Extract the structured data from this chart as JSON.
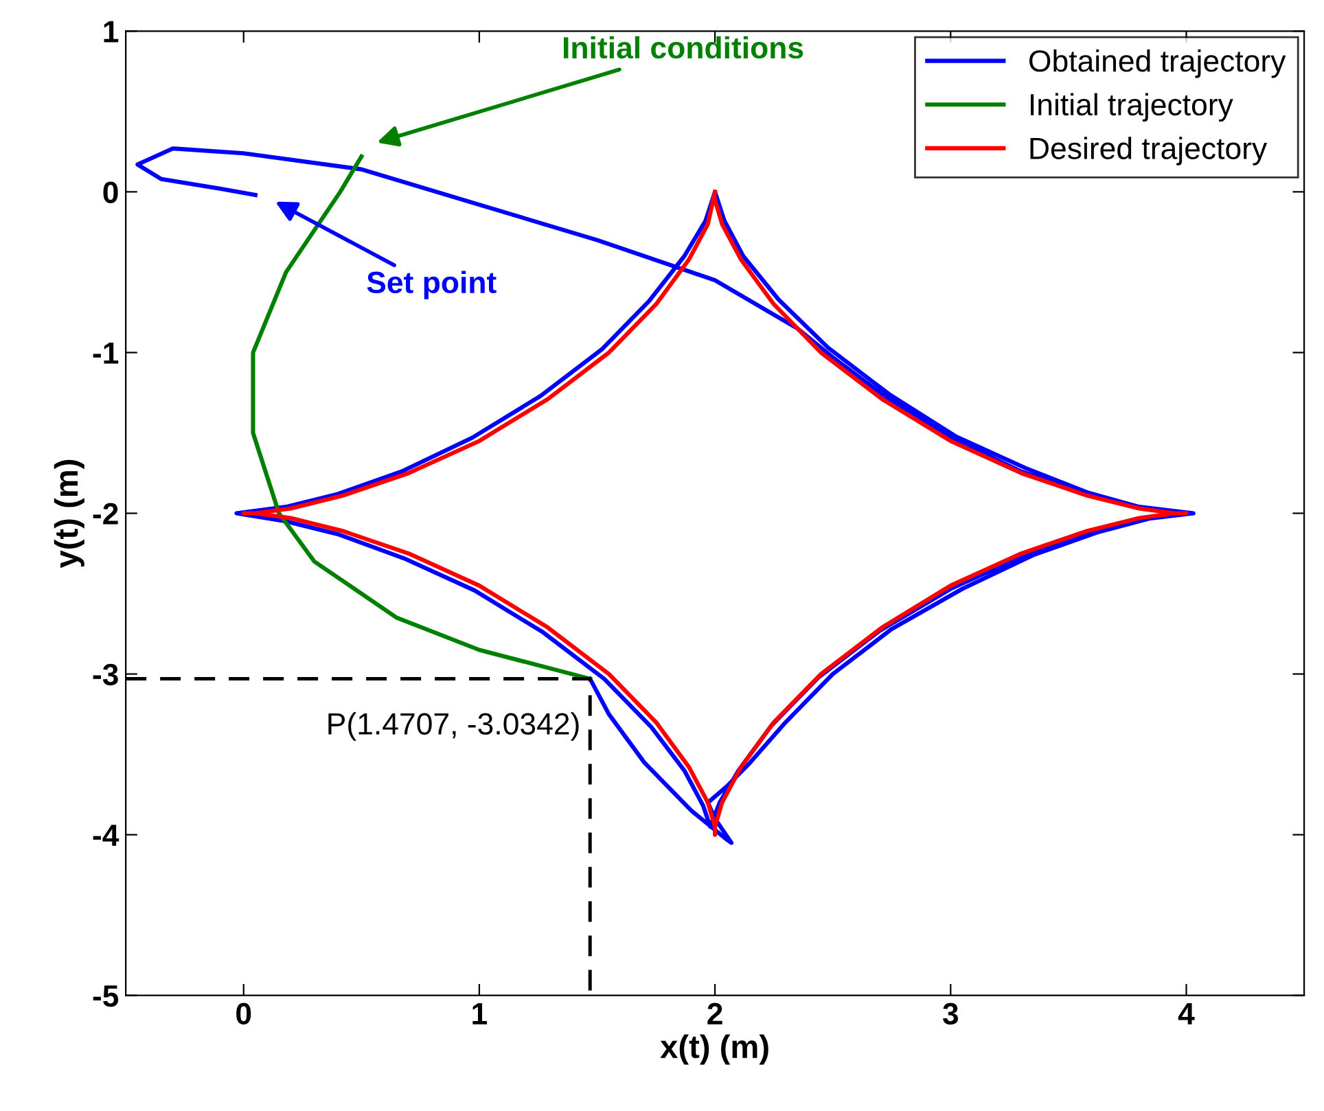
{
  "chart_data": {
    "type": "line",
    "xlabel": "x(t) (m)",
    "ylabel": "y(t) (m)",
    "xlim": [
      -0.5,
      4.5
    ],
    "ylim": [
      -5,
      1
    ],
    "xticks": [
      0,
      1,
      2,
      3,
      4
    ],
    "yticks": [
      -5,
      -4,
      -3,
      -2,
      -1,
      0,
      1
    ],
    "grid": false,
    "legend": "top right",
    "marker": "none",
    "series": [
      {
        "name": "Obtained trajectory",
        "color": "#0000ff",
        "x": [
          1.47,
          1.55,
          1.7,
          1.9,
          2.05,
          2.07,
          2.0,
          1.97,
          2.05,
          2.15,
          2.3,
          2.5,
          2.75,
          3.05,
          3.35,
          3.62,
          3.85,
          4.03,
          3.8,
          3.58,
          3.32,
          3.02,
          2.74,
          2.48,
          2.27,
          2.12,
          2.04,
          2.0,
          1.96,
          1.87,
          1.72,
          1.52,
          1.26,
          0.97,
          0.67,
          0.4,
          0.18,
          -0.03,
          0.18,
          0.4,
          0.68,
          0.98,
          1.27,
          1.53,
          1.73,
          1.87,
          1.95,
          1.98,
          2.02,
          2.1,
          2.24,
          2.44,
          2.7,
          3.0,
          3.3,
          3.58,
          3.8,
          4.03,
          3.8,
          3.58,
          3.3,
          3.0,
          2.72,
          2.5,
          2.35,
          2.0,
          1.5,
          1.0,
          0.5,
          0.0,
          -0.3,
          -0.45,
          -0.35,
          -0.1,
          0.05
        ],
        "values": [
          -3.03,
          -3.25,
          -3.55,
          -3.85,
          -4.03,
          -4.05,
          -3.9,
          -3.8,
          -3.7,
          -3.55,
          -3.3,
          -3.0,
          -2.72,
          -2.47,
          -2.26,
          -2.12,
          -2.03,
          -2.0,
          -1.96,
          -1.87,
          -1.72,
          -1.52,
          -1.26,
          -0.97,
          -0.67,
          -0.4,
          -0.18,
          0.0,
          -0.18,
          -0.4,
          -0.68,
          -0.98,
          -1.27,
          -1.53,
          -1.74,
          -1.88,
          -1.96,
          -2.0,
          -2.05,
          -2.13,
          -2.28,
          -2.48,
          -2.74,
          -3.03,
          -3.33,
          -3.6,
          -3.82,
          -3.95,
          -3.8,
          -3.6,
          -3.32,
          -3.02,
          -2.73,
          -2.47,
          -2.27,
          -2.12,
          -2.04,
          -2.0,
          -1.96,
          -1.88,
          -1.74,
          -1.53,
          -1.27,
          -1.03,
          -0.85,
          -0.55,
          -0.3,
          -0.08,
          0.14,
          0.24,
          0.27,
          0.17,
          0.08,
          0.02,
          -0.02
        ]
      },
      {
        "name": "Initial trajectory",
        "color": "#008000",
        "x": [
          0.5,
          0.41,
          0.18,
          0.04,
          0.04,
          0.15,
          0.3,
          0.65,
          1.0,
          1.47
        ],
        "values": [
          0.22,
          0.0,
          -0.5,
          -1.0,
          -1.5,
          -2.0,
          -2.3,
          -2.65,
          -2.85,
          -3.03
        ]
      },
      {
        "name": "Desired trajectory",
        "color": "#ff0000",
        "x": [
          2,
          1.97,
          1.89,
          1.75,
          1.55,
          1.29,
          1.0,
          0.7,
          0.42,
          0.2,
          0.05,
          0,
          0.05,
          0.2,
          0.42,
          0.7,
          1.0,
          1.29,
          1.55,
          1.75,
          1.89,
          1.97,
          2,
          2,
          2,
          2.03,
          2.11,
          2.25,
          2.45,
          2.71,
          3.0,
          3.3,
          3.58,
          3.8,
          3.95,
          4,
          3.95,
          3.8,
          3.58,
          3.3,
          3.0,
          2.71,
          2.45,
          2.25,
          2.11,
          2.03,
          2.0
        ],
        "values": [
          0,
          -0.2,
          -0.42,
          -0.7,
          -1.0,
          -1.29,
          -1.55,
          -1.75,
          -1.89,
          -1.97,
          -2.0,
          -2,
          -2.0,
          -2.03,
          -2.11,
          -2.25,
          -2.45,
          -2.71,
          -3.0,
          -3.3,
          -3.58,
          -3.8,
          -3.95,
          -4,
          -3.95,
          -3.8,
          -3.58,
          -3.3,
          -3.0,
          -2.71,
          -2.45,
          -2.25,
          -2.11,
          -2.03,
          -2.0,
          -2,
          -2.0,
          -1.97,
          -1.89,
          -1.75,
          -1.55,
          -1.29,
          -1.0,
          -0.7,
          -0.42,
          -0.2,
          -0.05
        ]
      },
      {
        "color": "#000000",
        "line_style": "dashed",
        "x": [
          -0.5,
          1.47,
          1.47
        ],
        "values": [
          -3.03,
          -3.03,
          -5
        ]
      }
    ],
    "annotations": [
      "Initial conditions",
      "Set point",
      {
        "text": "P(1.4707, -3.0342)",
        "x": 1.47,
        "y": -3.03
      }
    ]
  }
}
